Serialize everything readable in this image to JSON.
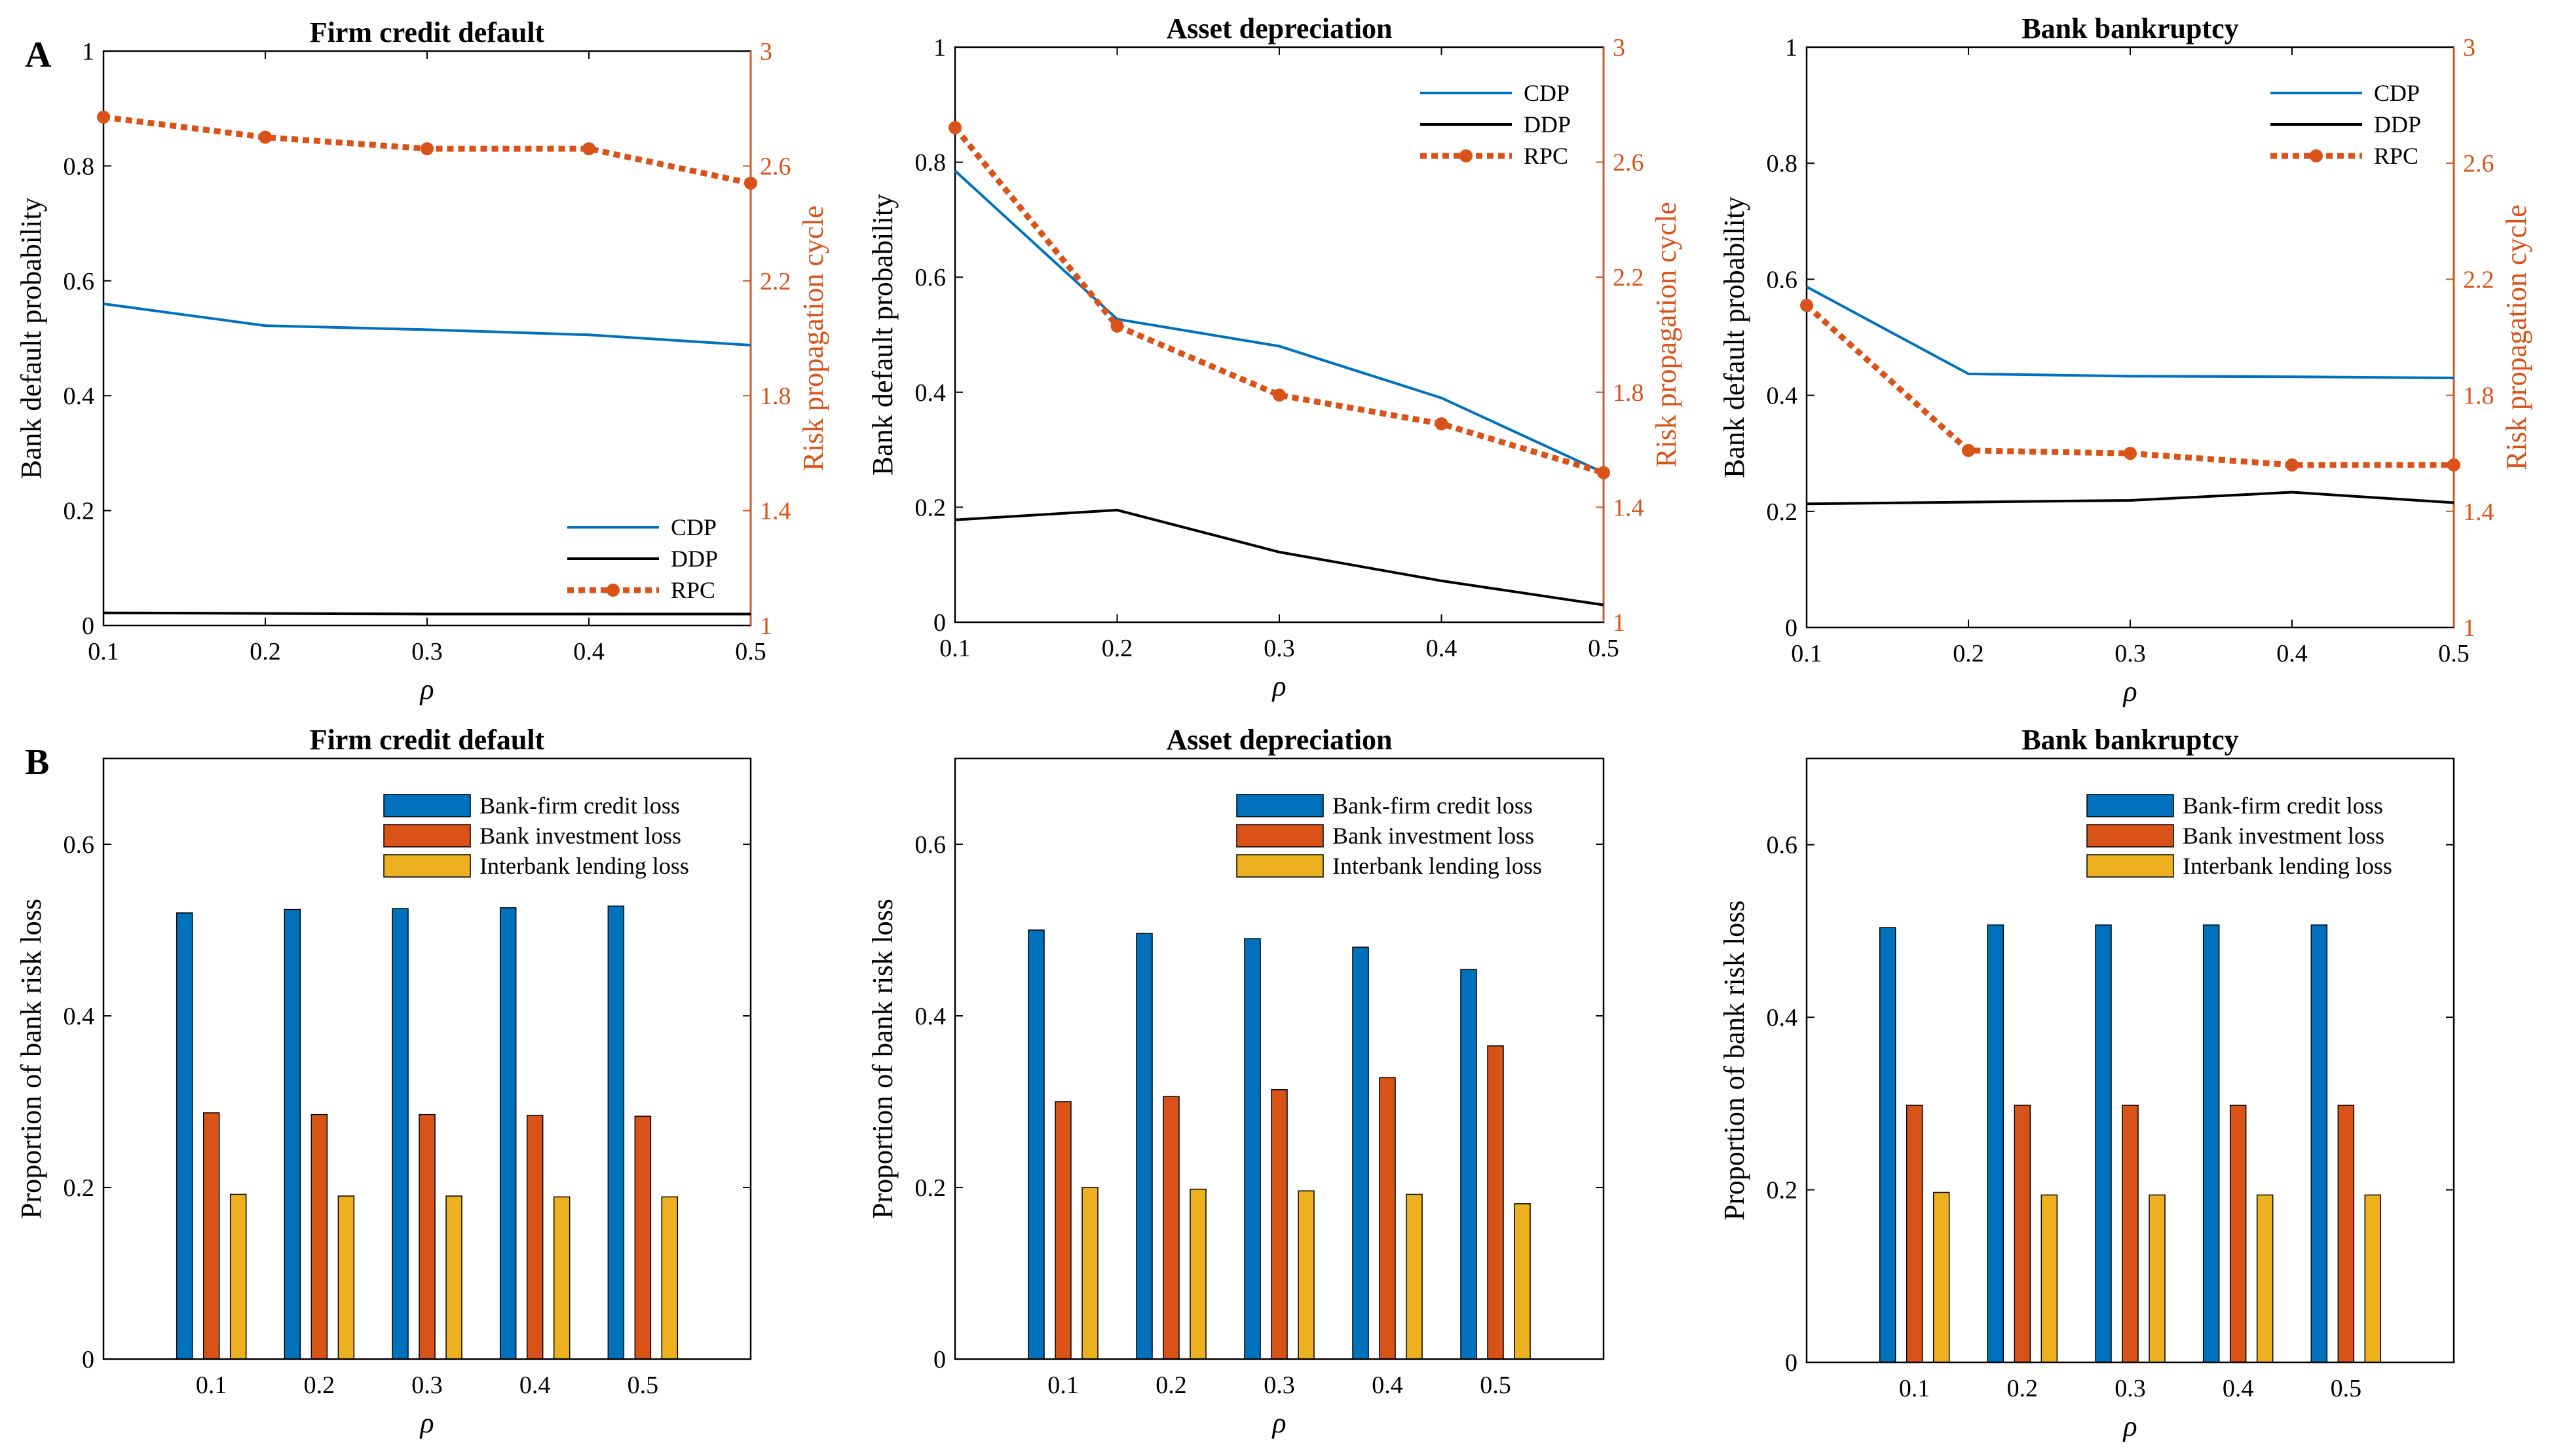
{
  "panel_labels": [
    "A",
    "B"
  ],
  "colors": {
    "blue": "#0072BD",
    "orange": "#D95319",
    "yellow": "#EDB120",
    "black": "#000000"
  },
  "chart_data": [
    {
      "type": "line",
      "panel": "A",
      "title": "Firm credit default",
      "xlabel": "ρ",
      "ylabel": "Bank default probability",
      "y2label": "Risk propagation cycle",
      "x": [
        0.1,
        0.2,
        0.3,
        0.4,
        0.5
      ],
      "xlim": [
        0.1,
        0.5
      ],
      "ylim": [
        0,
        1
      ],
      "y2lim": [
        1,
        3
      ],
      "xticks": [
        "0.1",
        "0.2",
        "0.3",
        "0.4",
        "0.5"
      ],
      "yticks": [
        "0",
        "0.2",
        "0.4",
        "0.6",
        "0.8",
        "1"
      ],
      "y2ticks": [
        "1",
        "1.4",
        "1.8",
        "2.2",
        "2.6",
        "3"
      ],
      "legend_position": "bottom-right",
      "series": [
        {
          "name": "CDP",
          "axis": "left",
          "values": [
            0.56,
            0.522,
            0.515,
            0.506,
            0.488
          ]
        },
        {
          "name": "DDP",
          "axis": "left",
          "values": [
            0.022,
            0.021,
            0.02,
            0.02,
            0.02
          ]
        },
        {
          "name": "RPC",
          "axis": "right",
          "values": [
            2.77,
            2.7,
            2.66,
            2.66,
            2.54
          ]
        }
      ]
    },
    {
      "type": "line",
      "panel": "A",
      "title": "Asset depreciation",
      "xlabel": "ρ",
      "ylabel": "Bank default probability",
      "y2label": "Risk propagation cycle",
      "x": [
        0.1,
        0.2,
        0.3,
        0.4,
        0.5
      ],
      "xlim": [
        0.1,
        0.5
      ],
      "ylim": [
        0,
        1
      ],
      "y2lim": [
        1,
        3
      ],
      "xticks": [
        "0.1",
        "0.2",
        "0.3",
        "0.4",
        "0.5"
      ],
      "yticks": [
        "0",
        "0.2",
        "0.4",
        "0.6",
        "0.8",
        "1"
      ],
      "y2ticks": [
        "1",
        "1.4",
        "1.8",
        "2.2",
        "2.6",
        "3"
      ],
      "legend_position": "top-right",
      "series": [
        {
          "name": "CDP",
          "axis": "left",
          "values": [
            0.785,
            0.527,
            0.48,
            0.39,
            0.26
          ]
        },
        {
          "name": "DDP",
          "axis": "left",
          "values": [
            0.178,
            0.195,
            0.122,
            0.072,
            0.03
          ]
        },
        {
          "name": "RPC",
          "axis": "right",
          "values": [
            2.72,
            2.03,
            1.79,
            1.69,
            1.52
          ]
        }
      ]
    },
    {
      "type": "line",
      "panel": "A",
      "title": "Bank bankruptcy",
      "xlabel": "ρ",
      "ylabel": "Bank default probability",
      "y2label": "Risk propagation cycle",
      "x": [
        0.1,
        0.2,
        0.3,
        0.4,
        0.5
      ],
      "xlim": [
        0.1,
        0.5
      ],
      "ylim": [
        0,
        1
      ],
      "y2lim": [
        1,
        3
      ],
      "xticks": [
        "0.1",
        "0.2",
        "0.3",
        "0.4",
        "0.5"
      ],
      "yticks": [
        "0",
        "0.2",
        "0.4",
        "0.6",
        "0.8",
        "1"
      ],
      "y2ticks": [
        "1",
        "1.4",
        "1.8",
        "2.2",
        "2.6",
        "3"
      ],
      "legend_position": "top-right",
      "series": [
        {
          "name": "CDP",
          "axis": "left",
          "values": [
            0.587,
            0.437,
            0.433,
            0.432,
            0.43
          ]
        },
        {
          "name": "DDP",
          "axis": "left",
          "values": [
            0.213,
            0.216,
            0.219,
            0.233,
            0.215
          ]
        },
        {
          "name": "RPC",
          "axis": "right",
          "values": [
            2.11,
            1.61,
            1.6,
            1.56,
            1.56
          ]
        }
      ]
    },
    {
      "type": "bar",
      "panel": "B",
      "title": "Firm credit default",
      "xlabel": "ρ",
      "ylabel": "Proportion of bank risk loss",
      "categories": [
        "0.1",
        "0.2",
        "0.3",
        "0.4",
        "0.5"
      ],
      "ylim": [
        0,
        0.7
      ],
      "yticks": [
        "0",
        "0.2",
        "0.4",
        "0.6"
      ],
      "legend_position": "top-right",
      "series": [
        {
          "name": "Bank-firm credit loss",
          "values": [
            0.52,
            0.524,
            0.525,
            0.526,
            0.528
          ]
        },
        {
          "name": "Bank investment loss",
          "values": [
            0.287,
            0.285,
            0.285,
            0.284,
            0.283
          ]
        },
        {
          "name": "Interbank lending loss",
          "values": [
            0.192,
            0.19,
            0.19,
            0.189,
            0.189
          ]
        }
      ]
    },
    {
      "type": "bar",
      "panel": "B",
      "title": "Asset depreciation",
      "xlabel": "ρ",
      "ylabel": "Proportion of bank risk loss",
      "categories": [
        "0.1",
        "0.2",
        "0.3",
        "0.4",
        "0.5"
      ],
      "ylim": [
        0,
        0.7
      ],
      "yticks": [
        "0",
        "0.2",
        "0.4",
        "0.6"
      ],
      "legend_position": "top-right",
      "series": [
        {
          "name": "Bank-firm credit loss",
          "values": [
            0.5,
            0.496,
            0.49,
            0.48,
            0.454
          ]
        },
        {
          "name": "Bank investment loss",
          "values": [
            0.3,
            0.306,
            0.314,
            0.328,
            0.365
          ]
        },
        {
          "name": "Interbank lending loss",
          "values": [
            0.2,
            0.198,
            0.196,
            0.192,
            0.181
          ]
        }
      ]
    },
    {
      "type": "bar",
      "panel": "B",
      "title": "Bank bankruptcy",
      "xlabel": "ρ",
      "ylabel": "Proportion of bank risk loss",
      "categories": [
        "0.1",
        "0.2",
        "0.3",
        "0.4",
        "0.5"
      ],
      "ylim": [
        0,
        0.7
      ],
      "yticks": [
        "0",
        "0.2",
        "0.4",
        "0.6"
      ],
      "legend_position": "top-right",
      "series": [
        {
          "name": "Bank-firm credit loss",
          "values": [
            0.504,
            0.507,
            0.507,
            0.507,
            0.507
          ]
        },
        {
          "name": "Bank investment loss",
          "values": [
            0.298,
            0.298,
            0.298,
            0.298,
            0.298
          ]
        },
        {
          "name": "Interbank lending loss",
          "values": [
            0.197,
            0.194,
            0.194,
            0.194,
            0.194
          ]
        }
      ]
    }
  ]
}
